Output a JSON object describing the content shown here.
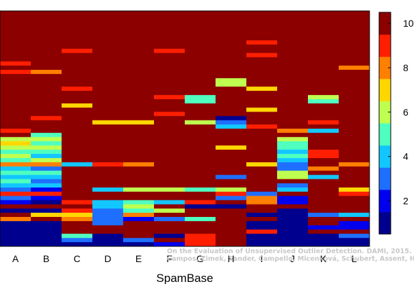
{
  "chart_data": {
    "type": "heatmap",
    "xlabel": "SpamBase",
    "ylabel": "",
    "categories": [
      "A",
      "B",
      "C",
      "D",
      "E",
      "F",
      "G",
      "H",
      "I",
      "J",
      "K",
      "L"
    ],
    "colorbar": {
      "range": [
        0.5,
        10.5
      ],
      "ticks": [
        "2",
        "4",
        "6",
        "8",
        "10"
      ],
      "colors": [
        "#00008f",
        "#0000ef",
        "#1f6fff",
        "#12c7ff",
        "#4fffbf",
        "#bfff50",
        "#ffd700",
        "#ff7f00",
        "#ff1f00",
        "#8c0000"
      ]
    },
    "grid": false,
    "legend": "colorbar-right",
    "rows": 56,
    "columns": [
      {
        "label": "A",
        "values": [
          10,
          10,
          10,
          10,
          10,
          10,
          10,
          10,
          10,
          10,
          10,
          10,
          9,
          10,
          9,
          10,
          10,
          10,
          10,
          10,
          10,
          10,
          10,
          10,
          10,
          10,
          10,
          10,
          9,
          10,
          6,
          7,
          6,
          5,
          6,
          5,
          8,
          4,
          5,
          4,
          5,
          4,
          3,
          9,
          3,
          2,
          10,
          1,
          10,
          8,
          1,
          1,
          1,
          1,
          1,
          1
        ]
      },
      {
        "label": "B",
        "values": [
          10,
          10,
          10,
          10,
          10,
          10,
          10,
          10,
          10,
          10,
          10,
          10,
          10,
          10,
          8,
          10,
          10,
          10,
          10,
          10,
          10,
          10,
          10,
          10,
          10,
          9,
          10,
          10,
          10,
          5,
          6,
          5,
          6,
          5,
          4,
          6,
          8,
          3,
          5,
          4,
          3,
          4,
          2,
          9,
          2,
          1,
          10,
          1,
          7,
          10,
          1,
          1,
          1,
          1,
          1,
          1
        ]
      },
      {
        "label": "C",
        "values": [
          10,
          10,
          10,
          10,
          10,
          10,
          10,
          10,
          10,
          9,
          10,
          10,
          10,
          10,
          10,
          10,
          10,
          10,
          9,
          10,
          10,
          10,
          7,
          10,
          10,
          10,
          10,
          10,
          10,
          10,
          10,
          10,
          10,
          10,
          10,
          10,
          4,
          10,
          10,
          10,
          10,
          10,
          10,
          10,
          10,
          9,
          10,
          9,
          7,
          8,
          10,
          10,
          10,
          5,
          3,
          1
        ]
      },
      {
        "label": "D",
        "values": [
          10,
          10,
          10,
          10,
          10,
          10,
          10,
          10,
          10,
          10,
          10,
          10,
          10,
          10,
          10,
          10,
          10,
          10,
          10,
          10,
          10,
          10,
          10,
          10,
          10,
          10,
          7,
          10,
          10,
          10,
          10,
          10,
          10,
          10,
          10,
          10,
          9,
          10,
          10,
          10,
          10,
          10,
          4,
          10,
          10,
          4,
          4,
          3,
          3,
          3,
          3,
          10,
          10,
          1,
          1,
          1
        ]
      },
      {
        "label": "E",
        "values": [
          10,
          10,
          10,
          10,
          10,
          10,
          10,
          10,
          10,
          10,
          10,
          10,
          10,
          10,
          10,
          10,
          10,
          10,
          10,
          10,
          10,
          10,
          10,
          10,
          10,
          10,
          7,
          10,
          10,
          10,
          10,
          10,
          10,
          10,
          10,
          10,
          8,
          10,
          10,
          10,
          10,
          10,
          6,
          10,
          10,
          5,
          6,
          5,
          8,
          2,
          10,
          10,
          10,
          10,
          3,
          1
        ]
      },
      {
        "label": "F",
        "values": [
          10,
          10,
          10,
          10,
          10,
          10,
          10,
          10,
          10,
          9,
          10,
          10,
          10,
          10,
          10,
          10,
          10,
          10,
          10,
          10,
          9,
          10,
          10,
          10,
          9,
          10,
          10,
          10,
          10,
          10,
          10,
          10,
          10,
          10,
          10,
          10,
          10,
          10,
          10,
          10,
          10,
          10,
          6,
          10,
          10,
          4,
          10,
          6,
          10,
          3,
          10,
          10,
          10,
          1,
          10,
          2
        ]
      },
      {
        "label": "G",
        "values": [
          10,
          10,
          10,
          10,
          10,
          10,
          10,
          10,
          10,
          10,
          10,
          10,
          10,
          10,
          10,
          10,
          10,
          10,
          10,
          10,
          5,
          5,
          10,
          10,
          10,
          10,
          6,
          10,
          10,
          10,
          10,
          10,
          10,
          10,
          10,
          10,
          10,
          10,
          10,
          10,
          10,
          10,
          5,
          10,
          10,
          9,
          1,
          10,
          10,
          5,
          10,
          10,
          10,
          9,
          9,
          9
        ]
      },
      {
        "label": "H",
        "values": [
          10,
          10,
          10,
          10,
          10,
          10,
          10,
          10,
          10,
          10,
          10,
          10,
          10,
          10,
          10,
          10,
          6,
          6,
          10,
          10,
          10,
          10,
          10,
          10,
          10,
          1,
          3,
          4,
          10,
          10,
          10,
          10,
          7,
          10,
          10,
          10,
          10,
          10,
          10,
          3,
          10,
          10,
          6,
          9,
          3,
          10,
          1,
          10,
          10,
          10,
          10,
          10,
          10,
          10,
          10,
          10
        ]
      },
      {
        "label": "I",
        "values": [
          10,
          10,
          10,
          10,
          10,
          10,
          10,
          9,
          10,
          10,
          9,
          10,
          10,
          10,
          10,
          10,
          10,
          10,
          7,
          10,
          10,
          10,
          10,
          7,
          10,
          10,
          10,
          9,
          10,
          10,
          10,
          10,
          10,
          10,
          10,
          10,
          7,
          10,
          10,
          10,
          10,
          10,
          10,
          3,
          8,
          8,
          10,
          10,
          1,
          10,
          1,
          1,
          9,
          1,
          1,
          1
        ]
      },
      {
        "label": "J",
        "values": [
          10,
          10,
          10,
          10,
          10,
          10,
          10,
          10,
          10,
          10,
          10,
          10,
          10,
          10,
          10,
          10,
          10,
          10,
          10,
          10,
          10,
          10,
          10,
          10,
          10,
          10,
          10,
          10,
          8,
          10,
          6,
          5,
          5,
          4,
          5,
          4,
          3,
          3,
          6,
          6,
          10,
          3,
          4,
          10,
          2,
          2,
          10,
          1,
          1,
          1,
          1,
          1,
          1,
          1,
          1,
          1
        ]
      },
      {
        "label": "K",
        "values": [
          10,
          10,
          10,
          10,
          10,
          10,
          10,
          10,
          10,
          10,
          10,
          10,
          10,
          10,
          10,
          10,
          10,
          10,
          10,
          10,
          6,
          5,
          10,
          10,
          10,
          10,
          9,
          10,
          4,
          10,
          10,
          10,
          10,
          9,
          9,
          10,
          10,
          8,
          10,
          4,
          10,
          10,
          10,
          10,
          10,
          10,
          10,
          10,
          3,
          10,
          10,
          2,
          10,
          1,
          1,
          1
        ]
      },
      {
        "label": "L",
        "values": [
          10,
          10,
          10,
          10,
          10,
          10,
          10,
          10,
          10,
          10,
          10,
          10,
          10,
          8,
          10,
          10,
          10,
          10,
          10,
          10,
          10,
          10,
          10,
          10,
          10,
          10,
          10,
          10,
          10,
          10,
          10,
          10,
          10,
          10,
          10,
          10,
          8,
          10,
          10,
          10,
          10,
          10,
          7,
          9,
          10,
          10,
          10,
          10,
          4,
          10,
          2,
          2,
          10,
          3,
          1,
          1
        ]
      }
    ]
  },
  "watermark": {
    "line1": "On the Evaluation of Unsupervised Outlier Detection. DAMI, 2015.",
    "line2": "Campos, Zimek, Sander, Campello, Micenková, Schubert, Assent, Houle"
  }
}
